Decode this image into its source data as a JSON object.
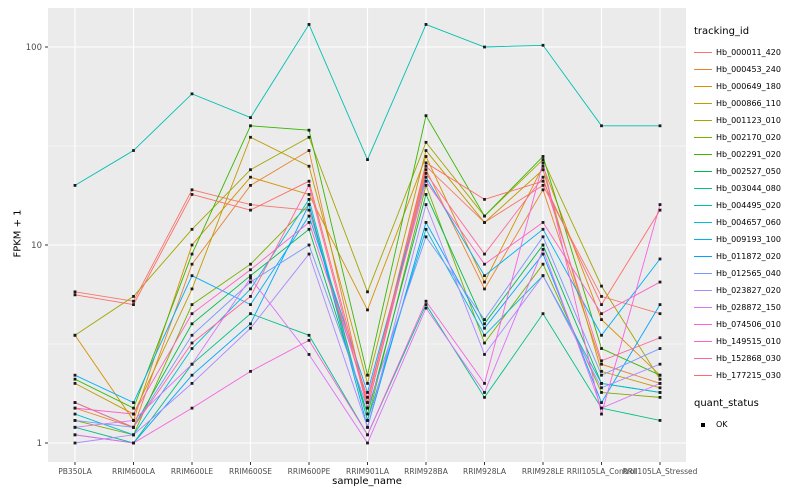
{
  "chart_data": {
    "type": "line",
    "title": "",
    "xlabel": "sample_name",
    "ylabel": "FPKM + 1",
    "y_scale": "log10",
    "y_ticks": [
      1,
      10,
      100
    ],
    "y_minor_ticks": [
      3.1623,
      31.623
    ],
    "ylim": [
      0.8,
      160
    ],
    "grid": true,
    "legend_position": "right",
    "legend": {
      "color_title": "tracking_id",
      "shape_title": "quant_status",
      "shape_entries": [
        {
          "label": "OK"
        }
      ]
    },
    "colors": {
      "panel_bg": "#EBEBEB",
      "grid": "#FFFFFF",
      "tick": "#333333",
      "tick_label": "#4D4D4D",
      "point": "#1a1a1a"
    },
    "categories": [
      "PB350LA",
      "RRIM600LA",
      "RRIM600LE",
      "RRIM600SE",
      "RRIM600PE",
      "RRIM901LA",
      "RRIM928BA",
      "RRIM928LA",
      "RRIM928LE",
      "RRII105LA_Control",
      "RRII105LA_Stressed"
    ],
    "series": [
      {
        "name": "Hb_000011_420",
        "color": "#F8766D",
        "values": [
          5.8,
          5.2,
          19,
          16,
          15,
          1.6,
          25,
          13,
          20,
          5.5,
          4.5
        ]
      },
      {
        "name": "Hb_000453_240",
        "color": "#EA8331",
        "values": [
          1.5,
          1.2,
          8,
          20,
          30,
          1.5,
          24,
          6,
          19,
          2.5,
          2.0
        ]
      },
      {
        "name": "Hb_000649_180",
        "color": "#D89000",
        "values": [
          3.5,
          1.3,
          10,
          22,
          18,
          4.7,
          28,
          6.5,
          25,
          4.2,
          2.2
        ]
      },
      {
        "name": "Hb_000866_110",
        "color": "#C09B00",
        "values": [
          2.0,
          1.4,
          6,
          35,
          25,
          2.0,
          30,
          13,
          24,
          2.3,
          1.9
        ]
      },
      {
        "name": "Hb_001123_010",
        "color": "#A3A500",
        "values": [
          3.5,
          5.5,
          12,
          24,
          35,
          5.8,
          33,
          14,
          27,
          6.2,
          2.1
        ]
      },
      {
        "name": "Hb_002170_020",
        "color": "#7CAE00",
        "values": [
          1.3,
          1.1,
          5,
          8,
          16,
          1.3,
          20,
          3.2,
          8,
          1.8,
          1.7
        ]
      },
      {
        "name": "Hb_002291_020",
        "color": "#39B600",
        "values": [
          2.1,
          1.5,
          9,
          40,
          38,
          2.2,
          45,
          14,
          28,
          3.0,
          2.2
        ]
      },
      {
        "name": "Hb_002527_050",
        "color": "#00BB4E",
        "values": [
          1.6,
          1.2,
          4,
          7,
          12,
          1.4,
          18,
          4,
          10,
          2.0,
          1.8
        ]
      },
      {
        "name": "Hb_003044_080",
        "color": "#00C087",
        "values": [
          1.2,
          1.0,
          2.5,
          4.5,
          3.5,
          1.1,
          5,
          1.7,
          4.5,
          1.5,
          1.3
        ]
      },
      {
        "name": "Hb_004495_020",
        "color": "#00C0B2",
        "values": [
          20,
          30,
          58,
          44,
          130,
          27,
          130,
          100,
          102,
          40,
          40
        ]
      },
      {
        "name": "Hb_004657_060",
        "color": "#00BCD8",
        "values": [
          1.4,
          1.1,
          3,
          6,
          17,
          1.3,
          12,
          3.5,
          7,
          2.0,
          1.8
        ]
      },
      {
        "name": "Hb_009193_100",
        "color": "#00B0F6",
        "values": [
          2.2,
          1.6,
          7,
          5,
          14,
          1.8,
          22,
          7,
          12,
          3.5,
          8.5
        ]
      },
      {
        "name": "Hb_011872_020",
        "color": "#00A5FF",
        "values": [
          1.1,
          1.0,
          2.2,
          4,
          16,
          1.2,
          13,
          3.8,
          9,
          1.6,
          5.0
        ]
      },
      {
        "name": "Hb_012565_040",
        "color": "#7997FF",
        "values": [
          1.3,
          1.2,
          3.5,
          6.5,
          10,
          1.5,
          11,
          4.2,
          11,
          2.2,
          3.0
        ]
      },
      {
        "name": "Hb_023827_020",
        "color": "#AC88FF",
        "values": [
          1.0,
          1.1,
          2.0,
          3.8,
          9,
          1.2,
          16,
          2.8,
          7,
          1.9,
          2.5
        ]
      },
      {
        "name": "Hb_028872_150",
        "color": "#DC71FA",
        "values": [
          1.2,
          1.3,
          2.5,
          6.8,
          2.8,
          1.0,
          4.8,
          1.8,
          9.5,
          1.5,
          2.0
        ]
      },
      {
        "name": "Hb_074506_010",
        "color": "#F763E0",
        "values": [
          1.1,
          1.0,
          1.5,
          2.3,
          3.3,
          1.1,
          5.2,
          2.0,
          26,
          1.4,
          16
        ]
      },
      {
        "name": "Hb_149515_010",
        "color": "#FF61C9",
        "values": [
          1.5,
          1.4,
          4.5,
          7.5,
          13,
          1.7,
          21,
          8,
          13,
          4.5,
          6.5
        ]
      },
      {
        "name": "Hb_152868_030",
        "color": "#FF68A1",
        "values": [
          1.6,
          1.2,
          3.2,
          5.5,
          20,
          1.5,
          23,
          9,
          22,
          2.6,
          3.4
        ]
      },
      {
        "name": "Hb_177215_030",
        "color": "#FF6C67",
        "values": [
          5.6,
          5.0,
          18,
          15,
          21,
          1.6,
          26,
          17,
          21,
          5.0,
          15
        ]
      }
    ]
  }
}
